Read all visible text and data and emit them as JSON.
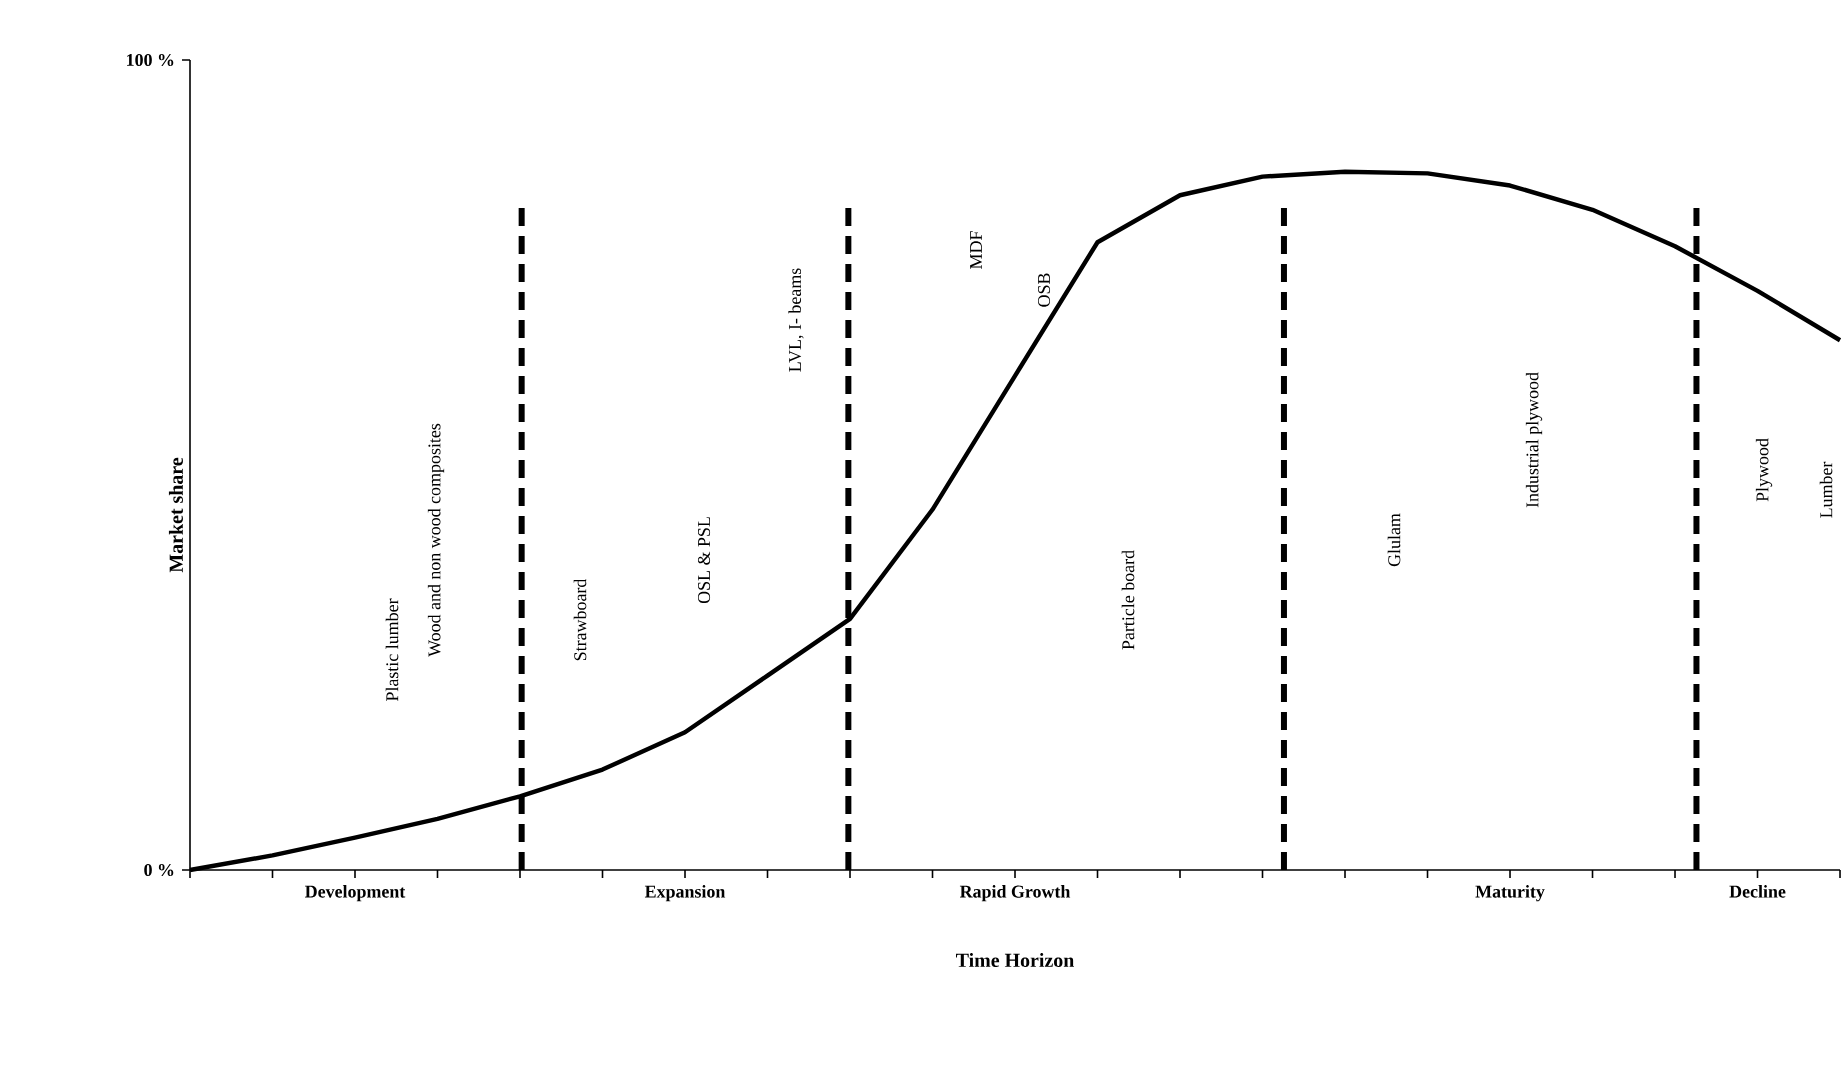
{
  "chart_data": {
    "type": "line",
    "xlabel": "Time Horizon",
    "ylabel": "Market share",
    "categories": [
      null,
      null,
      "Development",
      null,
      null,
      null,
      "Expansion",
      null,
      null,
      null,
      "Rapid Growth",
      null,
      null,
      null,
      null,
      null,
      "Maturity",
      null,
      null,
      "Decline",
      null
    ],
    "series": [
      {
        "color": "#000000",
        "values": [
          0,
          1.8,
          4,
          6.3,
          9.1,
          12.4,
          17,
          24,
          31,
          44.5,
          61,
          77.5,
          83.3,
          85.6,
          86.2,
          86,
          84.5,
          81.5,
          77,
          71.5,
          65.4
        ]
      }
    ],
    "ylim": [
      0,
      100
    ],
    "yticks": [
      {
        "value": 0,
        "label": "0 %"
      },
      {
        "value": 100,
        "label": "100 %"
      }
    ],
    "marker": "none",
    "line_style": "solid",
    "annotations": [
      "Plastic lumber",
      "Wood and non wood composites",
      "Strawboard",
      "OSL & PSL",
      "LVL, I- beams",
      "MDF",
      "OSB",
      "Particle board",
      "Glulam",
      "Industrial plywood",
      "Plywood",
      "Lumber"
    ]
  }
}
